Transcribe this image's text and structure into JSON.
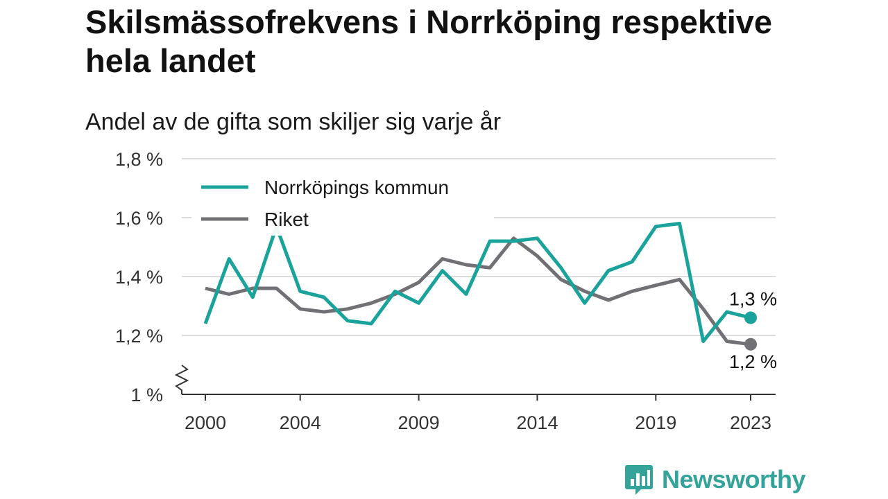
{
  "title": "Skilsmässofrekvens i Norrköping respektive hela landet",
  "subtitle": "Andel av de gifta som skiljer sig varje år",
  "brand": "Newsworthy",
  "colors": {
    "series_1": "#1aa39a",
    "series_2": "#707075",
    "grid": "#dcdcdc",
    "axis": "#333333",
    "brand": "#34a39a"
  },
  "chart_data": {
    "type": "line",
    "x": [
      2000,
      2001,
      2002,
      2003,
      2004,
      2005,
      2006,
      2007,
      2008,
      2009,
      2010,
      2011,
      2012,
      2013,
      2014,
      2015,
      2016,
      2017,
      2018,
      2019,
      2020,
      2021,
      2022,
      2023
    ],
    "x_ticks": [
      2000,
      2004,
      2009,
      2014,
      2019,
      2023
    ],
    "y_ticks": [
      1.0,
      1.2,
      1.4,
      1.6,
      1.8
    ],
    "y_tick_labels": [
      "1 %",
      "1,2 %",
      "1,4 %",
      "1,6 %",
      "1,8 %"
    ],
    "ylim": [
      1.0,
      1.8
    ],
    "xlim": [
      1999,
      2024
    ],
    "grid": true,
    "y_axis_break": true,
    "legend_position": "top-left",
    "series": [
      {
        "name": "Norrköpings kommun",
        "color": "#1aa39a",
        "values": [
          1.24,
          1.46,
          1.33,
          1.57,
          1.35,
          1.33,
          1.25,
          1.24,
          1.35,
          1.31,
          1.42,
          1.34,
          1.52,
          1.52,
          1.53,
          1.43,
          1.31,
          1.42,
          1.45,
          1.57,
          1.58,
          1.18,
          1.28,
          1.26
        ],
        "end_label": "1,3 %"
      },
      {
        "name": "Riket",
        "color": "#707075",
        "values": [
          1.36,
          1.34,
          1.36,
          1.36,
          1.29,
          1.28,
          1.29,
          1.31,
          1.34,
          1.38,
          1.46,
          1.44,
          1.43,
          1.53,
          1.47,
          1.39,
          1.35,
          1.32,
          1.35,
          1.37,
          1.39,
          1.29,
          1.18,
          1.17
        ],
        "end_label": "1,2 %"
      }
    ]
  }
}
